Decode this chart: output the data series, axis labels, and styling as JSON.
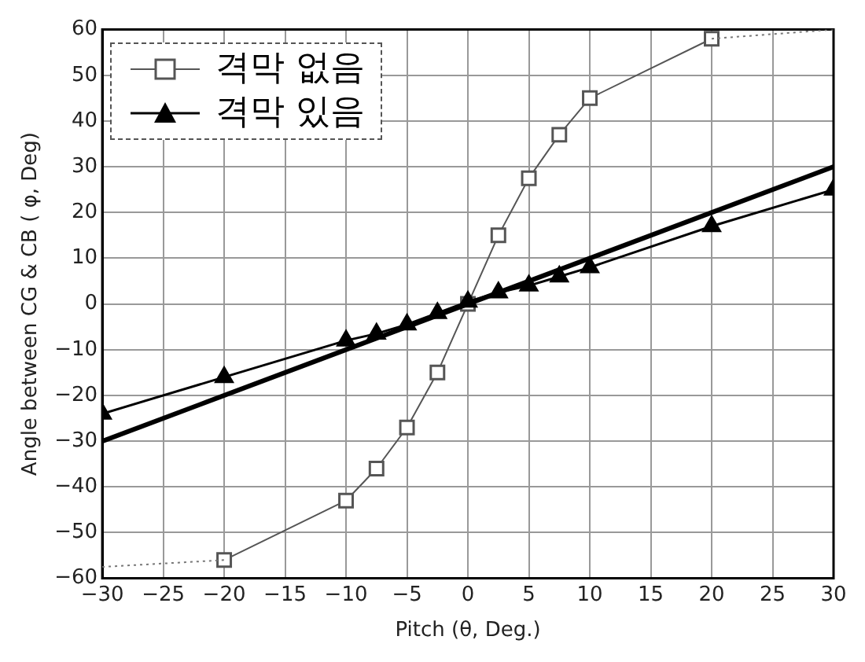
{
  "chart_data": {
    "type": "line",
    "xlabel": "Pitch (θ, Deg.)",
    "ylabel": "Angle between CG & CB ( φ, Deg)",
    "xlim": [
      -30,
      30
    ],
    "xticks": [
      -30,
      -25,
      -20,
      -15,
      -10,
      -5,
      0,
      5,
      10,
      15,
      20,
      25,
      30
    ],
    "ylim": [
      -60,
      60
    ],
    "yticks": [
      -60,
      -50,
      -40,
      -30,
      -20,
      -10,
      0,
      10,
      20,
      30,
      40,
      50,
      60
    ],
    "grid": true,
    "legend": "top left",
    "series": [
      {
        "name": "격막 없음",
        "color": "#555555",
        "marker": "square",
        "line_style": "solid",
        "x": [
          -20,
          -10,
          -7.5,
          -5,
          -2.5,
          0,
          2.5,
          5,
          7.5,
          10,
          20
        ],
        "values": [
          -56,
          -43,
          -36,
          -27,
          -15,
          0,
          15,
          27.5,
          37,
          45,
          58
        ]
      },
      {
        "name": "격막 있음",
        "color": "#000000",
        "marker": "triangle",
        "line_style": "solid",
        "x": [
          -30,
          -20,
          -10,
          -7.5,
          -5,
          -2.5,
          0,
          2.5,
          5,
          7.5,
          10,
          20,
          30
        ],
        "values": [
          -24,
          -16,
          -8,
          -6.5,
          -4.5,
          -2,
          0.5,
          2.5,
          4,
          6,
          8,
          17,
          25
        ]
      },
      {
        "color": "#000000",
        "marker": "none",
        "line_style": "solid",
        "x": [
          -30,
          30
        ],
        "values": [
          -30,
          30
        ]
      },
      {
        "color": "#777777",
        "marker": "none",
        "line_style": "dotted",
        "x": [
          -30,
          -20,
          0,
          20,
          30
        ],
        "values": [
          -57.5,
          -56,
          null,
          58,
          60
        ]
      }
    ]
  }
}
